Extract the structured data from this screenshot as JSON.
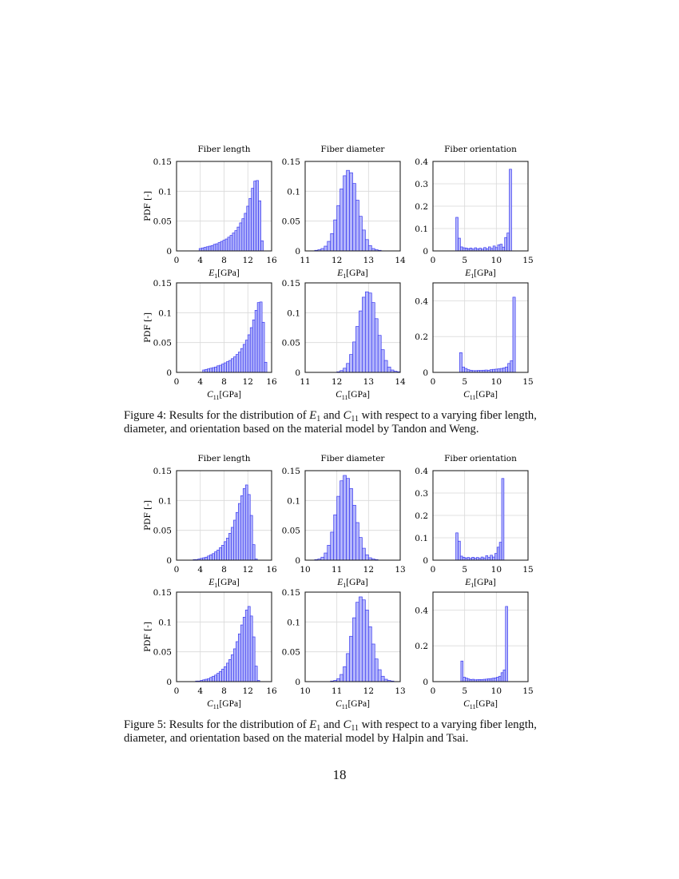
{
  "colors": {
    "bar_fill": "#b4b6fb",
    "bar_stroke": "#3a3af0",
    "grid": "#d9d9d9",
    "frame": "#222222"
  },
  "figures": [
    {
      "caption_lines": [
        [
          {
            "t": "Figure 4: Results for the distribution of "
          },
          {
            "v": "E",
            "s": "1"
          },
          {
            "t": " and "
          },
          {
            "v": "C",
            "s": "11"
          },
          {
            "t": " with respect to a varying fiber length,"
          }
        ],
        [
          {
            "t": "diameter, and orientation based on the material model by Tandon and Weng."
          }
        ]
      ]
    },
    {
      "caption_lines": [
        [
          {
            "t": "Figure 5: Results for the distribution of "
          },
          {
            "v": "E",
            "s": "1"
          },
          {
            "t": " and "
          },
          {
            "v": "C",
            "s": "11"
          },
          {
            "t": " with respect to a varying fiber length,"
          }
        ],
        [
          {
            "t": "diameter, and orientation based on the material model by Halpin and Tsai."
          }
        ]
      ]
    }
  ],
  "page_number": "18",
  "chart_data": [
    {
      "figure": "Figure 4",
      "type": "bar",
      "title": "Fiber length",
      "ylabel": "PDF [-]",
      "xlabel": {
        "var": "E",
        "sub": "1",
        "unit": "[GPa]"
      },
      "xlim": [
        0,
        16
      ],
      "xticks": [
        0,
        4,
        8,
        12,
        16
      ],
      "ylim": [
        0,
        0.15
      ],
      "yticks": [
        0,
        0.05,
        0.1,
        0.15
      ],
      "ytick_labels": [
        "0",
        "0.05",
        "0.1",
        "0.15"
      ],
      "grid": true,
      "bin_start": 3.8,
      "bin_width": 0.4,
      "values": [
        0.004,
        0.005,
        0.006,
        0.007,
        0.008,
        0.009,
        0.011,
        0.012,
        0.014,
        0.016,
        0.018,
        0.02,
        0.023,
        0.026,
        0.03,
        0.034,
        0.04,
        0.047,
        0.054,
        0.063,
        0.075,
        0.088,
        0.105,
        0.117,
        0.118,
        0.084,
        0.017
      ]
    },
    {
      "figure": "Figure 4",
      "type": "bar",
      "title": "Fiber diameter",
      "ylabel": "",
      "xlabel": {
        "var": "E",
        "sub": "1",
        "unit": "[GPa]"
      },
      "xlim": [
        11,
        14
      ],
      "xticks": [
        11,
        12,
        13,
        14
      ],
      "ylim": [
        0,
        0.15
      ],
      "yticks": [
        0,
        0.05,
        0.1,
        0.15
      ],
      "ytick_labels": [
        "0",
        "0.05",
        "0.1",
        "0.15"
      ],
      "grid": true,
      "bin_start": 11.3,
      "bin_width": 0.1,
      "values": [
        0.001,
        0.002,
        0.004,
        0.008,
        0.016,
        0.029,
        0.052,
        0.076,
        0.104,
        0.126,
        0.135,
        0.131,
        0.113,
        0.085,
        0.058,
        0.035,
        0.019,
        0.009,
        0.004,
        0.002,
        0.001
      ]
    },
    {
      "figure": "Figure 4",
      "type": "bar",
      "title": "Fiber orientation",
      "ylabel": "",
      "xlabel": {
        "var": "E",
        "sub": "1",
        "unit": "[GPa]"
      },
      "xlim": [
        0,
        15
      ],
      "xticks": [
        0,
        5,
        10,
        15
      ],
      "ylim": [
        0,
        0.4
      ],
      "yticks": [
        0,
        0.1,
        0.2,
        0.3,
        0.4
      ],
      "ytick_labels": [
        "0",
        "0.1",
        "0.2",
        "0.3",
        "0.4"
      ],
      "grid": true,
      "bin_start": 3.6,
      "bin_width": 0.367,
      "values": [
        0.15,
        0.057,
        0.018,
        0.014,
        0.013,
        0.01,
        0.013,
        0.008,
        0.014,
        0.009,
        0.012,
        0.008,
        0.015,
        0.01,
        0.018,
        0.011,
        0.022,
        0.015,
        0.027,
        0.03,
        0.017,
        0.06,
        0.08,
        0.365
      ]
    },
    {
      "figure": "Figure 4",
      "type": "bar",
      "title": "",
      "ylabel": "PDF [-]",
      "xlabel": {
        "var": "C",
        "sub": "11",
        "unit": "[GPa]"
      },
      "xlim": [
        0,
        16
      ],
      "xticks": [
        0,
        4,
        8,
        12,
        16
      ],
      "ylim": [
        0,
        0.15
      ],
      "yticks": [
        0,
        0.05,
        0.1,
        0.15
      ],
      "ytick_labels": [
        "0",
        "0.05",
        "0.1",
        "0.15"
      ],
      "grid": true,
      "bin_start": 4.4,
      "bin_width": 0.4,
      "values": [
        0.004,
        0.005,
        0.006,
        0.007,
        0.008,
        0.009,
        0.011,
        0.012,
        0.014,
        0.016,
        0.018,
        0.02,
        0.023,
        0.026,
        0.03,
        0.034,
        0.04,
        0.047,
        0.054,
        0.063,
        0.075,
        0.088,
        0.104,
        0.117,
        0.118,
        0.084,
        0.017
      ]
    },
    {
      "figure": "Figure 4",
      "type": "bar",
      "title": "",
      "ylabel": "",
      "xlabel": {
        "var": "C",
        "sub": "11",
        "unit": "[GPa]"
      },
      "xlim": [
        11,
        14
      ],
      "xticks": [
        11,
        12,
        13,
        14
      ],
      "ylim": [
        0,
        0.15
      ],
      "yticks": [
        0,
        0.05,
        0.1,
        0.15
      ],
      "ytick_labels": [
        "0",
        "0.05",
        "0.1",
        "0.15"
      ],
      "grid": true,
      "bin_start": 12.0,
      "bin_width": 0.1,
      "values": [
        0.001,
        0.003,
        0.007,
        0.015,
        0.03,
        0.051,
        0.077,
        0.103,
        0.126,
        0.135,
        0.133,
        0.117,
        0.09,
        0.062,
        0.038,
        0.02,
        0.009,
        0.004,
        0.002,
        0.001
      ]
    },
    {
      "figure": "Figure 4",
      "type": "bar",
      "title": "",
      "ylabel": "",
      "xlabel": {
        "var": "C",
        "sub": "11",
        "unit": "[GPa]"
      },
      "xlim": [
        0,
        15
      ],
      "xticks": [
        0,
        5,
        10,
        15
      ],
      "ylim": [
        0,
        0.5
      ],
      "yticks": [
        0,
        0.2,
        0.4
      ],
      "ytick_labels": [
        "0",
        "0.2",
        "0.4"
      ],
      "grid": true,
      "bin_start": 4.2,
      "bin_width": 0.4,
      "values": [
        0.11,
        0.03,
        0.022,
        0.015,
        0.012,
        0.01,
        0.01,
        0.011,
        0.011,
        0.012,
        0.013,
        0.012,
        0.015,
        0.017,
        0.018,
        0.02,
        0.022,
        0.025,
        0.03,
        0.05,
        0.065,
        0.42
      ]
    },
    {
      "figure": "Figure 5",
      "type": "bar",
      "title": "Fiber length",
      "ylabel": "PDF [-]",
      "xlabel": {
        "var": "E",
        "sub": "1",
        "unit": "[GPa]"
      },
      "xlim": [
        0,
        16
      ],
      "xticks": [
        0,
        4,
        8,
        12,
        16
      ],
      "ylim": [
        0,
        0.15
      ],
      "yticks": [
        0,
        0.05,
        0.1,
        0.15
      ],
      "ytick_labels": [
        "0",
        "0.05",
        "0.1",
        "0.15"
      ],
      "grid": true,
      "bin_start": 2.8,
      "bin_width": 0.4,
      "values": [
        0.001,
        0.001,
        0.002,
        0.003,
        0.004,
        0.005,
        0.007,
        0.009,
        0.011,
        0.014,
        0.017,
        0.021,
        0.025,
        0.031,
        0.037,
        0.045,
        0.055,
        0.067,
        0.08,
        0.095,
        0.108,
        0.12,
        0.126,
        0.11,
        0.075,
        0.026,
        0.002
      ]
    },
    {
      "figure": "Figure 5",
      "type": "bar",
      "title": "Fiber diameter",
      "ylabel": "",
      "xlabel": {
        "var": "E",
        "sub": "1",
        "unit": "[GPa]"
      },
      "xlim": [
        10,
        13
      ],
      "xticks": [
        10,
        11,
        12,
        13
      ],
      "ylim": [
        0,
        0.15
      ],
      "yticks": [
        0,
        0.05,
        0.1,
        0.15
      ],
      "ytick_labels": [
        "0",
        "0.05",
        "0.1",
        "0.15"
      ],
      "grid": true,
      "bin_start": 10.3,
      "bin_width": 0.1,
      "values": [
        0.001,
        0.002,
        0.005,
        0.012,
        0.025,
        0.047,
        0.076,
        0.107,
        0.133,
        0.142,
        0.137,
        0.12,
        0.092,
        0.063,
        0.038,
        0.02,
        0.009,
        0.004,
        0.002,
        0.001
      ]
    },
    {
      "figure": "Figure 5",
      "type": "bar",
      "title": "Fiber orientation",
      "ylabel": "",
      "xlabel": {
        "var": "E",
        "sub": "1",
        "unit": "[GPa]"
      },
      "xlim": [
        0,
        15
      ],
      "xticks": [
        0,
        5,
        10,
        15
      ],
      "ylim": [
        0,
        0.4
      ],
      "yticks": [
        0,
        0.1,
        0.2,
        0.3,
        0.4
      ],
      "ytick_labels": [
        "0",
        "0.1",
        "0.2",
        "0.3",
        "0.4"
      ],
      "grid": true,
      "bin_start": 3.6,
      "bin_width": 0.362,
      "values": [
        0.122,
        0.085,
        0.018,
        0.013,
        0.01,
        0.012,
        0.008,
        0.013,
        0.009,
        0.012,
        0.008,
        0.014,
        0.01,
        0.02,
        0.012,
        0.022,
        0.014,
        0.03,
        0.058,
        0.08,
        0.365
      ]
    },
    {
      "figure": "Figure 5",
      "type": "bar",
      "title": "",
      "ylabel": "PDF [-]",
      "xlabel": {
        "var": "C",
        "sub": "11",
        "unit": "[GPa]"
      },
      "xlim": [
        0,
        16
      ],
      "xticks": [
        0,
        4,
        8,
        12,
        16
      ],
      "ylim": [
        0,
        0.15
      ],
      "yticks": [
        0,
        0.05,
        0.1,
        0.15
      ],
      "ytick_labels": [
        "0",
        "0.05",
        "0.1",
        "0.15"
      ],
      "grid": true,
      "bin_start": 3.2,
      "bin_width": 0.4,
      "values": [
        0.001,
        0.001,
        0.002,
        0.003,
        0.004,
        0.005,
        0.007,
        0.009,
        0.011,
        0.014,
        0.017,
        0.021,
        0.025,
        0.031,
        0.037,
        0.045,
        0.055,
        0.067,
        0.08,
        0.095,
        0.108,
        0.12,
        0.126,
        0.11,
        0.075,
        0.026,
        0.002
      ]
    },
    {
      "figure": "Figure 5",
      "type": "bar",
      "title": "",
      "ylabel": "",
      "xlabel": {
        "var": "C",
        "sub": "11",
        "unit": "[GPa]"
      },
      "xlim": [
        10,
        13
      ],
      "xticks": [
        10,
        11,
        12,
        13
      ],
      "ylim": [
        0,
        0.15
      ],
      "yticks": [
        0,
        0.05,
        0.1,
        0.15
      ],
      "ytick_labels": [
        "0",
        "0.05",
        "0.1",
        "0.15"
      ],
      "grid": true,
      "bin_start": 10.8,
      "bin_width": 0.1,
      "values": [
        0.001,
        0.002,
        0.005,
        0.012,
        0.025,
        0.047,
        0.076,
        0.107,
        0.133,
        0.142,
        0.137,
        0.12,
        0.092,
        0.063,
        0.038,
        0.02,
        0.009,
        0.004,
        0.002,
        0.001
      ]
    },
    {
      "figure": "Figure 5",
      "type": "bar",
      "title": "",
      "ylabel": "",
      "xlabel": {
        "var": "C",
        "sub": "11",
        "unit": "[GPa]"
      },
      "xlim": [
        0,
        15
      ],
      "xticks": [
        0,
        5,
        10,
        15
      ],
      "ylim": [
        0,
        0.5
      ],
      "yticks": [
        0,
        0.2,
        0.4
      ],
      "ytick_labels": [
        "0",
        "0.2",
        "0.4"
      ],
      "grid": true,
      "bin_start": 4.4,
      "bin_width": 0.352,
      "values": [
        0.115,
        0.025,
        0.02,
        0.015,
        0.012,
        0.013,
        0.01,
        0.011,
        0.012,
        0.011,
        0.013,
        0.014,
        0.016,
        0.017,
        0.019,
        0.021,
        0.025,
        0.03,
        0.05,
        0.065,
        0.42
      ]
    }
  ]
}
